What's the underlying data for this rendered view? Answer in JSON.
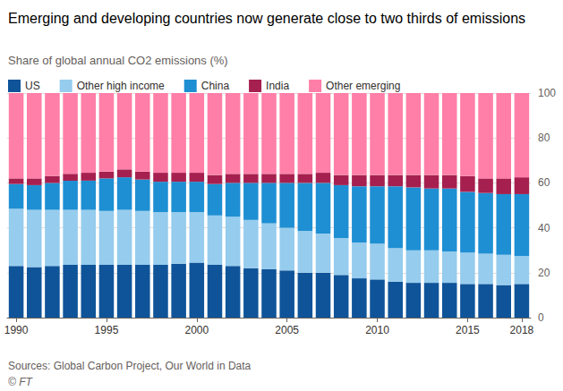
{
  "chart_data": {
    "type": "bar",
    "stacked": true,
    "title": "Emerging and developing countries now generate close to two thirds of emissions",
    "subtitle": "Share of global annual CO2 emissions (%)",
    "source": "Sources: Global Carbon Project, Our World in Data",
    "credit": "© FT",
    "legend": "top-left",
    "grid": true,
    "categories": [
      1990,
      null,
      null,
      null,
      null,
      1995,
      null,
      null,
      null,
      null,
      2000,
      null,
      null,
      null,
      null,
      2005,
      null,
      null,
      null,
      null,
      2010,
      null,
      null,
      null,
      null,
      2015,
      null,
      null,
      2018
    ],
    "ylim": [
      0,
      100
    ],
    "yticks": [
      0,
      20,
      40,
      60,
      80,
      100
    ],
    "series": [
      {
        "name": "US",
        "color": "#0f5499",
        "values": [
          23,
          22.5,
          23,
          23.5,
          23.5,
          23.5,
          23.5,
          23.5,
          23.5,
          24,
          24.5,
          23.5,
          23,
          22,
          21.5,
          21,
          20,
          20,
          19,
          17.5,
          17,
          16,
          15.5,
          15.5,
          15.5,
          15,
          15,
          14.5,
          15
        ]
      },
      {
        "name": "Other high income",
        "color": "#96cced",
        "values": [
          25.5,
          25.5,
          25,
          24.5,
          24.5,
          24,
          24.5,
          24,
          23.5,
          23,
          22.5,
          22,
          22,
          21.5,
          20.5,
          19,
          18.5,
          17.5,
          16.5,
          16,
          16,
          15,
          14.5,
          14.5,
          14,
          14,
          13.5,
          13.5,
          12.5
        ]
      },
      {
        "name": "China",
        "color": "#1e8fd3",
        "values": [
          11,
          11,
          12,
          13,
          13,
          14.5,
          14.5,
          14,
          13.5,
          13.5,
          13.5,
          14,
          15,
          16.5,
          18,
          20,
          21.5,
          22.5,
          23.5,
          25,
          25.5,
          27.5,
          28,
          27.5,
          28,
          27,
          27,
          27,
          27.5
        ]
      },
      {
        "name": "India",
        "color": "#a6204f",
        "values": [
          2.5,
          3,
          3,
          3,
          3.5,
          3,
          3.5,
          3.5,
          4,
          4,
          4,
          4,
          4,
          4,
          4,
          4,
          4,
          4.5,
          4.5,
          5,
          5,
          5,
          5.5,
          6,
          6,
          7,
          6.5,
          7,
          7.5
        ]
      },
      {
        "name": "Other emerging",
        "color": "#ff7fa8",
        "values": [
          38,
          38,
          37,
          36,
          35.5,
          35,
          34,
          35,
          35.5,
          35.5,
          35.5,
          36.5,
          36,
          36,
          36,
          36,
          36,
          35.5,
          36.5,
          36.5,
          36.5,
          36.5,
          36.5,
          36.5,
          36.5,
          37,
          38,
          38,
          37.5
        ]
      }
    ]
  }
}
